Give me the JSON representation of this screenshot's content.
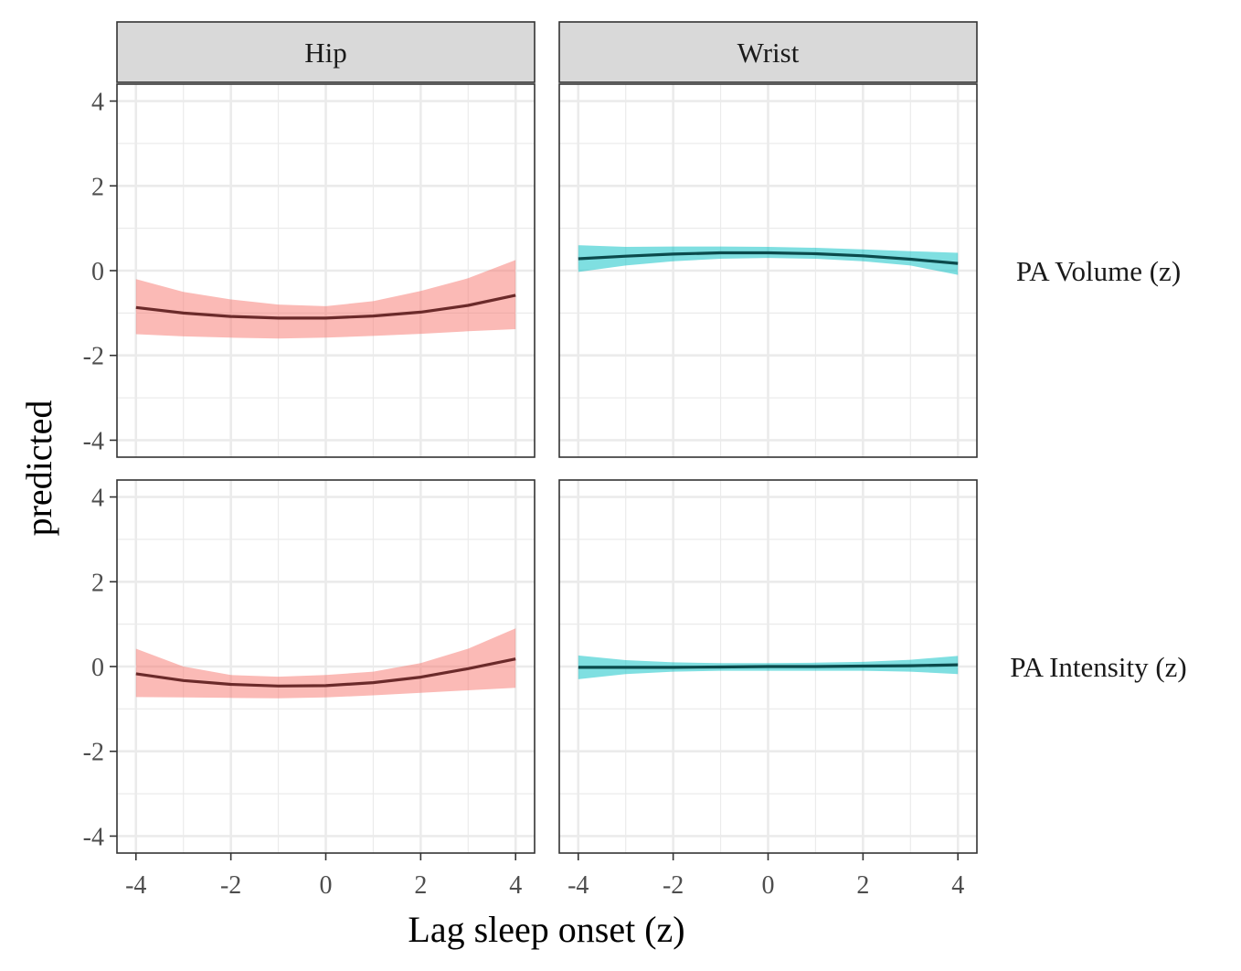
{
  "chart_data": {
    "type": "line",
    "xlabel": "Lag sleep onset (z)",
    "ylabel": "predicted",
    "xlim": [
      -4.4,
      4.4
    ],
    "ylim": [
      -4.4,
      4.4
    ],
    "x_ticks": [
      -4,
      -2,
      0,
      2,
      4
    ],
    "x_tick_labels": [
      "-4",
      "-2",
      "0",
      "2",
      "4"
    ],
    "y_ticks": [
      -4,
      -2,
      0,
      2,
      4
    ],
    "y_tick_labels": [
      "-4",
      "-2",
      "0",
      "2",
      "4"
    ],
    "grid": true,
    "facet_columns": [
      "Hip",
      "Wrist"
    ],
    "facet_rows": [
      "PA Volume (z)",
      "PA Intensity (z)"
    ],
    "colors": {
      "hip_ribbon": "#f8766d",
      "hip_line": "#6b2a2a",
      "wrist_ribbon": "#00bfc4",
      "wrist_line": "#0b4a4c",
      "strip_fill": "#d9d9d9",
      "grid": "#ebebeb",
      "panel_border": "#333333"
    },
    "panels": [
      {
        "column": "Hip",
        "row": "PA Volume (z)",
        "x": [
          -4,
          -3,
          -2,
          -1,
          0,
          1,
          2,
          3,
          4
        ],
        "y": [
          -0.87,
          -1.0,
          -1.08,
          -1.12,
          -1.12,
          -1.07,
          -0.98,
          -0.82,
          -0.58
        ],
        "lower": [
          -1.5,
          -1.55,
          -1.58,
          -1.6,
          -1.58,
          -1.54,
          -1.49,
          -1.43,
          -1.38
        ],
        "upper": [
          -0.2,
          -0.5,
          -0.68,
          -0.8,
          -0.84,
          -0.72,
          -0.48,
          -0.18,
          0.25
        ]
      },
      {
        "column": "Wrist",
        "row": "PA Volume (z)",
        "x": [
          -4,
          -3,
          -2,
          -1,
          0,
          1,
          2,
          3,
          4
        ],
        "y": [
          0.28,
          0.34,
          0.39,
          0.42,
          0.42,
          0.4,
          0.35,
          0.27,
          0.17
        ],
        "lower": [
          -0.03,
          0.12,
          0.22,
          0.28,
          0.3,
          0.28,
          0.22,
          0.12,
          -0.1
        ],
        "upper": [
          0.6,
          0.56,
          0.57,
          0.57,
          0.56,
          0.54,
          0.5,
          0.46,
          0.42
        ]
      },
      {
        "column": "Hip",
        "row": "PA Intensity (z)",
        "x": [
          -4,
          -3,
          -2,
          -1,
          0,
          1,
          2,
          3,
          4
        ],
        "y": [
          -0.17,
          -0.33,
          -0.42,
          -0.46,
          -0.45,
          -0.38,
          -0.25,
          -0.05,
          0.18
        ],
        "lower": [
          -0.72,
          -0.73,
          -0.74,
          -0.75,
          -0.73,
          -0.68,
          -0.62,
          -0.56,
          -0.5
        ],
        "upper": [
          0.42,
          0.0,
          -0.2,
          -0.24,
          -0.2,
          -0.12,
          0.08,
          0.42,
          0.9
        ]
      },
      {
        "column": "Wrist",
        "row": "PA Intensity (z)",
        "x": [
          -4,
          -3,
          -2,
          -1,
          0,
          1,
          2,
          3,
          4
        ],
        "y": [
          -0.02,
          -0.02,
          -0.02,
          -0.01,
          0.0,
          0.0,
          0.01,
          0.02,
          0.04
        ],
        "lower": [
          -0.3,
          -0.18,
          -0.12,
          -0.1,
          -0.1,
          -0.1,
          -0.1,
          -0.12,
          -0.18
        ],
        "upper": [
          0.26,
          0.15,
          0.1,
          0.08,
          0.08,
          0.09,
          0.11,
          0.16,
          0.25
        ]
      }
    ]
  }
}
